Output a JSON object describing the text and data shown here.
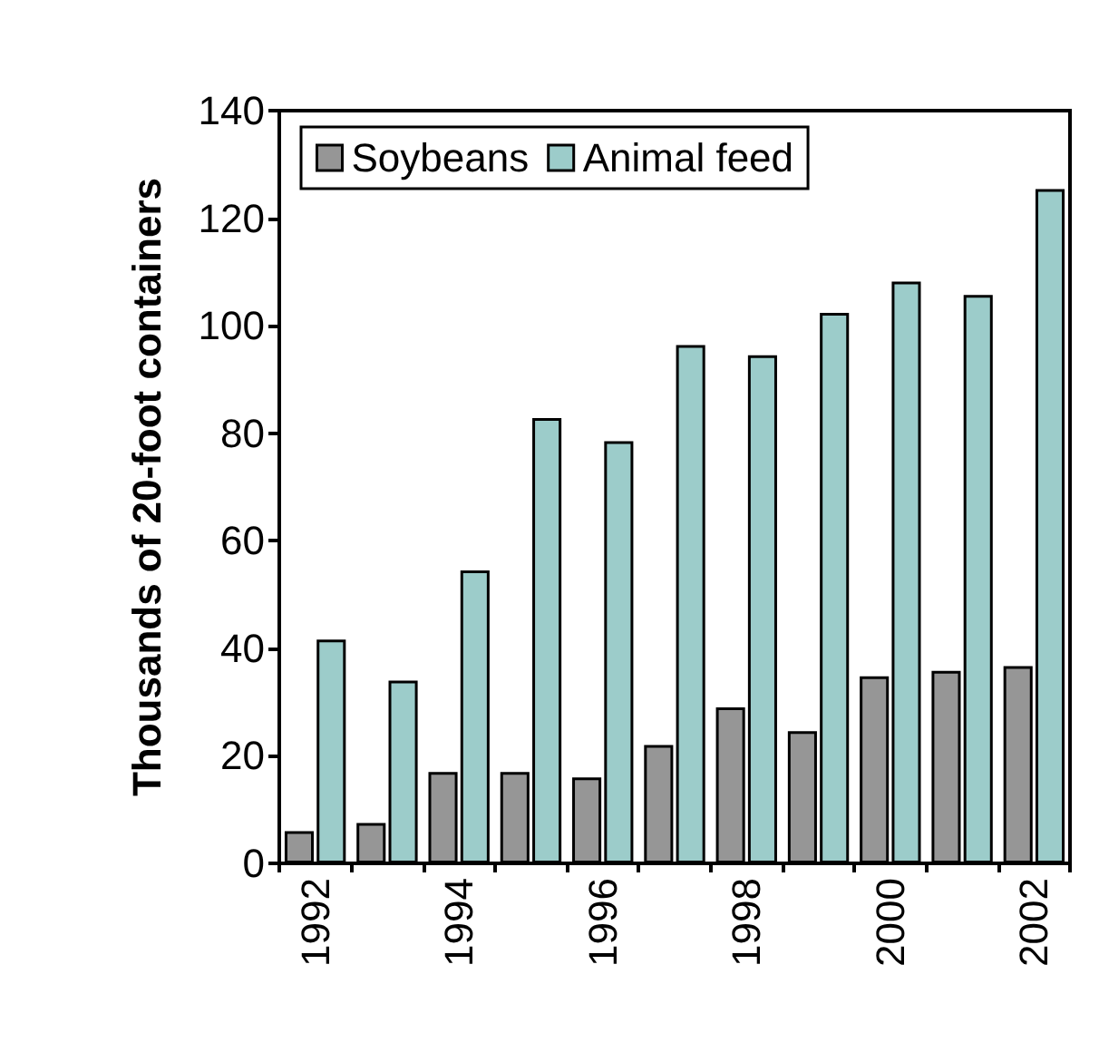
{
  "chart_data": {
    "type": "bar",
    "ylabel": "Thousands of 20-foot containers",
    "categories": [
      "1992",
      null,
      "1994",
      null,
      "1996",
      null,
      "1998",
      null,
      "2000",
      null,
      "2002"
    ],
    "series": [
      {
        "name": "Soybeans",
        "color": "#969696",
        "values": [
          6,
          7.5,
          17,
          17,
          16,
          22,
          29,
          24.6,
          34.8,
          35.8,
          36.7
        ]
      },
      {
        "name": "Animal feed",
        "color": "#9cccca",
        "values": [
          41.6,
          34,
          54.5,
          82.8,
          78.5,
          96.4,
          94.5,
          102.4,
          108.2,
          105.7,
          125.4
        ]
      }
    ],
    "ylim": [
      0,
      140
    ],
    "yticks": [
      0,
      20,
      40,
      60,
      80,
      100,
      120,
      140
    ],
    "grid": false,
    "legend": "top left"
  }
}
